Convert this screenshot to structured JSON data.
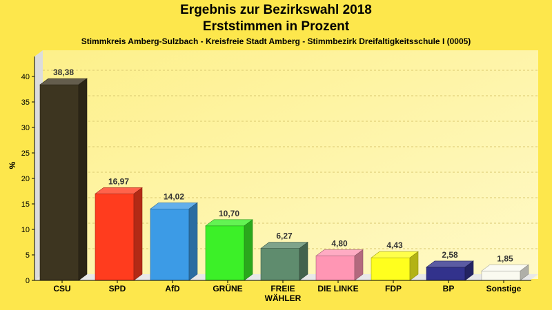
{
  "header": {
    "title": "Ergebnis zur Bezirkswahl 2018",
    "subtitle": "Erststimmen in Prozent",
    "caption": "Stimmkreis Amberg-Sulzbach - Kreisfreie Stadt Amberg - Stimmbezirk Dreifaltigkeitsschule I (0005)"
  },
  "chart_data": {
    "type": "bar",
    "title": "Ergebnis zur Bezirkswahl 2018",
    "subtitle": "Erststimmen in Prozent",
    "ylabel": "%",
    "xlabel": "",
    "ylim": [
      0,
      40
    ],
    "yticks": [
      0,
      5,
      10,
      15,
      20,
      25,
      30,
      35,
      40
    ],
    "grid": true,
    "categories": [
      "CSU",
      "SPD",
      "AfD",
      "GRÜNE",
      "FREIE WÄHLER",
      "DIE LINKE",
      "FDP",
      "BP",
      "Sonstige"
    ],
    "category_lines": [
      [
        "CSU"
      ],
      [
        "SPD"
      ],
      [
        "AfD"
      ],
      [
        "GRÜNE"
      ],
      [
        "FREIE",
        "WÄHLER"
      ],
      [
        "DIE LINKE"
      ],
      [
        "FDP"
      ],
      [
        "BP"
      ],
      [
        "Sonstige"
      ]
    ],
    "values": [
      38.38,
      16.97,
      14.02,
      10.7,
      6.27,
      4.8,
      4.43,
      2.58,
      1.85
    ],
    "value_labels": [
      "38,38",
      "16,97",
      "14,02",
      "10,70",
      "6,27",
      "4,80",
      "4,43",
      "2,58",
      "1,85"
    ],
    "colors": [
      "#3d3520",
      "#ff3c1e",
      "#3c9be6",
      "#3cf028",
      "#5f8c6e",
      "#ff96b4",
      "#ffff1e",
      "#32328c",
      "#fafaf0"
    ],
    "background_color": "#fde74c"
  }
}
